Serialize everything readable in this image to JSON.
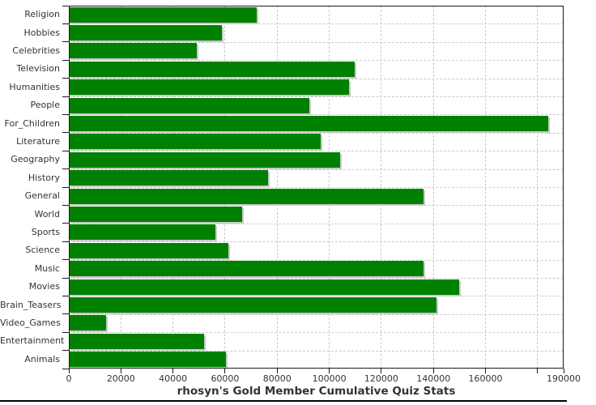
{
  "title": "rhosyn's Gold Member Cumulative Quiz Stats",
  "chart_data": {
    "type": "bar",
    "orientation": "horizontal",
    "title": "rhosyn's Gold Member Cumulative Quiz Stats",
    "categories": [
      "Religion",
      "Hobbies",
      "Celebrities",
      "Television",
      "Humanities",
      "People",
      "For_Children",
      "Literature",
      "Geography",
      "History",
      "General",
      "World",
      "Sports",
      "Science",
      "Music",
      "Movies",
      "Brain_Teasers",
      "Video_Games",
      "Entertainment",
      "Animals"
    ],
    "values": [
      72000,
      58700,
      49000,
      109900,
      107700,
      92300,
      184200,
      96800,
      104100,
      76400,
      136300,
      66500,
      56200,
      61400,
      136300,
      150000,
      141200,
      14300,
      51800,
      60300
    ],
    "xlim": [
      0,
      190000
    ],
    "xticks": [
      0,
      20000,
      40000,
      60000,
      80000,
      100000,
      120000,
      140000,
      160000,
      180000,
      190000
    ],
    "xtick_labels": [
      "0",
      "20000",
      "40000",
      "60000",
      "80000",
      "100000",
      "120000",
      "140000",
      "160000",
      "",
      "190000"
    ],
    "grid": "dashed",
    "legend_position": "none",
    "bar_color": "#008000",
    "shadow_color": "#c9c9c9",
    "grid_color": "#c9c9c9",
    "axis_color": "#1a1a1a",
    "text_color": "#333333",
    "background_color": "#ffffff"
  }
}
